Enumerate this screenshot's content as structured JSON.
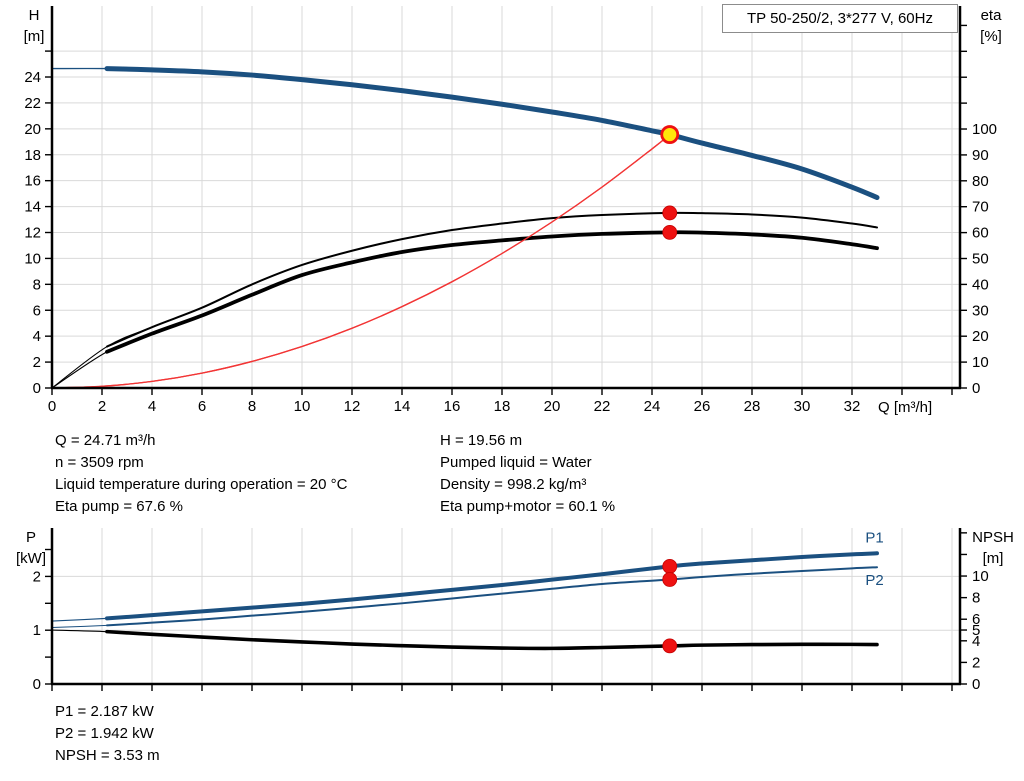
{
  "title_box": {
    "label": "TP 50-250/2, 3*277 V, 60Hz"
  },
  "axis_labels": {
    "h": "H",
    "h_unit": "[m]",
    "eta": "eta",
    "eta_unit": "[%]",
    "p": "P",
    "p_unit": "[kW]",
    "npsh": "NPSH",
    "npsh_unit": "[m]",
    "q": "Q [m³/h]"
  },
  "info_top": {
    "left": [
      "Q = 24.71 m³/h",
      "n = 3509 rpm",
      "Liquid temperature during operation = 20 °C",
      "Eta pump = 67.6 %"
    ],
    "right": [
      "H = 19.56 m",
      "Pumped liquid = Water",
      "Density = 998.2 kg/m³",
      "Eta pump+motor = 60.1 %"
    ]
  },
  "info_bottom": [
    "P1 = 2.187 kW",
    "P2 = 1.942 kW",
    "NPSH = 3.53 m"
  ],
  "colors": {
    "curve_blue": "#1b5080",
    "curve_black": "#000000",
    "system_red": "#f23535",
    "marker_red": "#ee1111",
    "marker_yellow": "#ffe60a",
    "grid": "#d9d9d9",
    "axis": "#000000",
    "title_border": "#8c8c8c"
  },
  "chart_data": [
    {
      "type": "line",
      "name": "qh-curve-chart",
      "title": "TP 50-250/2, 3*277 V, 60Hz",
      "x_axis": {
        "label": "Q [m³/h]",
        "min": 0,
        "max": 36.32,
        "ticks": [
          0,
          2,
          4,
          6,
          8,
          10,
          12,
          14,
          16,
          18,
          20,
          22,
          24,
          26,
          28,
          30,
          32,
          34,
          36
        ],
        "labeled_ticks": [
          0,
          2,
          4,
          6,
          8,
          10,
          12,
          14,
          16,
          18,
          20,
          22,
          24,
          26,
          28,
          30,
          32
        ],
        "grid": [
          2,
          4,
          6,
          8,
          10,
          12,
          14,
          16,
          18,
          20,
          22,
          24,
          26,
          28,
          30,
          32,
          34,
          36
        ]
      },
      "y_left": {
        "label": "H [m]",
        "min": 0,
        "max": 29.48,
        "ticks": [
          0,
          2,
          4,
          6,
          8,
          10,
          12,
          14,
          16,
          18,
          20,
          22,
          24,
          26
        ],
        "labeled_ticks": [
          0,
          2,
          4,
          6,
          8,
          10,
          12,
          14,
          16,
          18,
          20,
          22,
          24
        ],
        "grid": [
          2,
          4,
          6,
          8,
          10,
          12,
          14,
          16,
          18,
          20,
          22,
          24,
          26
        ]
      },
      "y_right": {
        "label": "eta [%]",
        "min": 0,
        "max": 147.5,
        "ticks": [
          0,
          10,
          20,
          30,
          40,
          50,
          60,
          70,
          80,
          90,
          100,
          110,
          120,
          130,
          140
        ],
        "labeled_ticks": [
          0,
          10,
          20,
          30,
          40,
          50,
          60,
          70,
          80,
          90,
          100
        ],
        "grid": []
      },
      "series": [
        {
          "name": "head-curve",
          "axis": "left",
          "color": "curve_blue",
          "width": 5,
          "thin_width": 1.3,
          "thin_until": 2.2,
          "points": [
            [
              0,
              24.65
            ],
            [
              2.2,
              24.65
            ],
            [
              4,
              24.55
            ],
            [
              6,
              24.4
            ],
            [
              8,
              24.15
            ],
            [
              10,
              23.8
            ],
            [
              12,
              23.4
            ],
            [
              14,
              22.95
            ],
            [
              16,
              22.45
            ],
            [
              18,
              21.9
            ],
            [
              20,
              21.3
            ],
            [
              22,
              20.65
            ],
            [
              24,
              19.85
            ],
            [
              24.71,
              19.56
            ],
            [
              26,
              18.9
            ],
            [
              28,
              17.95
            ],
            [
              30,
              16.9
            ],
            [
              32,
              15.5
            ],
            [
              33,
              14.7
            ]
          ]
        },
        {
          "name": "eta-pump-curve",
          "axis": "right",
          "color": "curve_black",
          "width": 2,
          "thin_width": 1.1,
          "thin_until": 2.2,
          "points": [
            [
              0,
              0
            ],
            [
              2.2,
              16
            ],
            [
              4,
              23.5
            ],
            [
              6,
              31
            ],
            [
              8,
              40
            ],
            [
              10,
              47.5
            ],
            [
              12,
              53
            ],
            [
              14,
              57.5
            ],
            [
              16,
              61
            ],
            [
              18,
              63.5
            ],
            [
              20,
              65.6
            ],
            [
              22,
              66.8
            ],
            [
              24.71,
              67.6
            ],
            [
              26,
              67.5
            ],
            [
              28,
              67
            ],
            [
              30,
              65.8
            ],
            [
              32,
              63.5
            ],
            [
              33,
              62
            ]
          ]
        },
        {
          "name": "eta-pump-motor-curve",
          "axis": "right",
          "color": "curve_black",
          "width": 3.8,
          "thin_width": 1.1,
          "thin_until": 2.2,
          "points": [
            [
              0,
              0
            ],
            [
              2.2,
              14
            ],
            [
              4,
              21
            ],
            [
              6,
              28
            ],
            [
              8,
              36
            ],
            [
              10,
              43.6
            ],
            [
              12,
              48.5
            ],
            [
              14,
              52.5
            ],
            [
              16,
              55.2
            ],
            [
              18,
              57
            ],
            [
              20,
              58.5
            ],
            [
              22,
              59.5
            ],
            [
              24.71,
              60.1
            ],
            [
              26,
              60
            ],
            [
              28,
              59.3
            ],
            [
              30,
              58
            ],
            [
              32,
              55.5
            ],
            [
              33,
              54
            ]
          ]
        },
        {
          "name": "system-curve",
          "axis": "left",
          "color": "system_red",
          "width": 1.3,
          "thin_width": 1.3,
          "thin_until": 0,
          "points": [
            [
              0,
              0
            ],
            [
              2,
              0.13
            ],
            [
              4,
              0.51
            ],
            [
              6,
              1.15
            ],
            [
              8,
              2.05
            ],
            [
              10,
              3.2
            ],
            [
              12,
              4.61
            ],
            [
              14,
              6.28
            ],
            [
              16,
              8.2
            ],
            [
              18,
              10.38
            ],
            [
              20,
              12.81
            ],
            [
              22,
              15.5
            ],
            [
              24,
              18.45
            ],
            [
              24.71,
              19.56
            ]
          ]
        }
      ],
      "markers": [
        {
          "kind": "duty-point",
          "axis": "left",
          "x": 24.71,
          "y": 19.56
        },
        {
          "kind": "dot",
          "axis": "right",
          "x": 24.71,
          "y": 67.6
        },
        {
          "kind": "dot",
          "axis": "right",
          "x": 24.71,
          "y": 60.1
        }
      ],
      "annotations": []
    },
    {
      "type": "line",
      "name": "power-npsh-chart",
      "x_axis": {
        "label": "",
        "min": 0,
        "max": 36.32,
        "ticks": [
          0,
          2,
          4,
          6,
          8,
          10,
          12,
          14,
          16,
          18,
          20,
          22,
          24,
          26,
          28,
          30,
          32,
          34,
          36
        ],
        "labeled_ticks": [],
        "grid": [
          2,
          4,
          6,
          8,
          10,
          12,
          14,
          16,
          18,
          20,
          22,
          24,
          26,
          28,
          30,
          32,
          34,
          36
        ]
      },
      "y_left": {
        "label": "P [kW]",
        "min": 0,
        "max": 2.9,
        "ticks": [
          0,
          0.5,
          1,
          1.5,
          2,
          2.5
        ],
        "labeled_ticks": [
          0,
          1,
          2
        ],
        "grid": [
          1,
          2
        ]
      },
      "y_right": {
        "label": "NPSH [m]",
        "min": 0,
        "max": 14.45,
        "ticks": [
          0,
          2,
          4,
          5,
          6,
          8,
          10,
          12,
          14
        ],
        "labeled_ticks": [
          0,
          2,
          4,
          5,
          6,
          8,
          10
        ],
        "grid": []
      },
      "series": [
        {
          "name": "p1-curve",
          "axis": "left",
          "color": "curve_blue",
          "width": 4,
          "thin_width": 1.2,
          "thin_until": 2.2,
          "points": [
            [
              0,
              1.17
            ],
            [
              2.2,
              1.22
            ],
            [
              4,
              1.28
            ],
            [
              6,
              1.35
            ],
            [
              8,
              1.42
            ],
            [
              10,
              1.49
            ],
            [
              12,
              1.57
            ],
            [
              14,
              1.66
            ],
            [
              16,
              1.75
            ],
            [
              18,
              1.84
            ],
            [
              20,
              1.94
            ],
            [
              22,
              2.04
            ],
            [
              24.71,
              2.187
            ],
            [
              26,
              2.24
            ],
            [
              28,
              2.3
            ],
            [
              30,
              2.36
            ],
            [
              32,
              2.41
            ],
            [
              33,
              2.43
            ]
          ]
        },
        {
          "name": "p2-curve",
          "axis": "left",
          "color": "curve_blue",
          "width": 2,
          "thin_width": 1,
          "thin_until": 2.2,
          "points": [
            [
              0,
              1.05
            ],
            [
              2.2,
              1.09
            ],
            [
              4,
              1.14
            ],
            [
              6,
              1.2
            ],
            [
              8,
              1.27
            ],
            [
              10,
              1.34
            ],
            [
              12,
              1.42
            ],
            [
              14,
              1.5
            ],
            [
              16,
              1.59
            ],
            [
              18,
              1.68
            ],
            [
              20,
              1.77
            ],
            [
              22,
              1.86
            ],
            [
              24.71,
              1.942
            ],
            [
              26,
              1.99
            ],
            [
              28,
              2.05
            ],
            [
              30,
              2.1
            ],
            [
              32,
              2.15
            ],
            [
              33,
              2.17
            ]
          ]
        },
        {
          "name": "npsh-curve",
          "axis": "right",
          "color": "curve_black",
          "width": 3.6,
          "thin_width": 1.1,
          "thin_until": 2.2,
          "points": [
            [
              0,
              5.0
            ],
            [
              2.2,
              4.85
            ],
            [
              4,
              4.6
            ],
            [
              6,
              4.35
            ],
            [
              8,
              4.1
            ],
            [
              10,
              3.9
            ],
            [
              12,
              3.7
            ],
            [
              14,
              3.55
            ],
            [
              16,
              3.42
            ],
            [
              18,
              3.33
            ],
            [
              20,
              3.3
            ],
            [
              22,
              3.38
            ],
            [
              24.71,
              3.53
            ],
            [
              26,
              3.6
            ],
            [
              28,
              3.65
            ],
            [
              30,
              3.68
            ],
            [
              32,
              3.67
            ],
            [
              33,
              3.65
            ]
          ]
        }
      ],
      "markers": [
        {
          "kind": "dot",
          "axis": "left",
          "x": 24.71,
          "y": 2.187
        },
        {
          "kind": "dot",
          "axis": "left",
          "x": 24.71,
          "y": 1.942
        },
        {
          "kind": "dot",
          "axis": "right",
          "x": 24.71,
          "y": 3.53
        }
      ],
      "annotations": [
        {
          "text": "P1",
          "axis": "left",
          "x": 32.9,
          "y": 2.72,
          "color": "curve_blue"
        },
        {
          "text": "P2",
          "axis": "left",
          "x": 32.9,
          "y": 1.93,
          "color": "curve_blue"
        }
      ]
    }
  ]
}
